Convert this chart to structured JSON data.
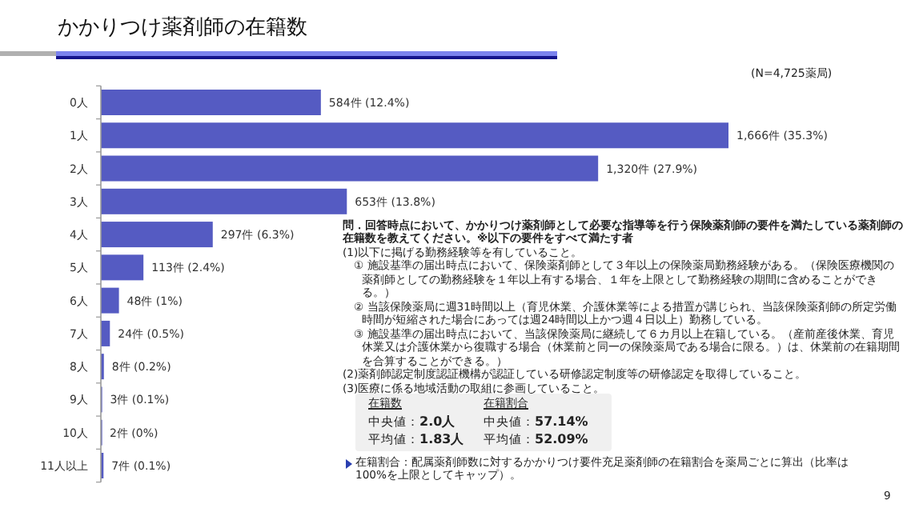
{
  "chart_data": {
    "type": "bar",
    "orientation": "horizontal",
    "title": "かかりつけ薬剤師の在籍数",
    "subtitle": "(N=4,725薬局)",
    "categories": [
      "0人",
      "1人",
      "2人",
      "3人",
      "4人",
      "5人",
      "6人",
      "7人",
      "8人",
      "9人",
      "10人",
      "11人以上"
    ],
    "values": [
      584,
      1666,
      1320,
      653,
      297,
      113,
      48,
      24,
      8,
      3,
      2,
      7
    ],
    "value_labels": [
      "584件 (12.4%)",
      "1,666件 (35.3%)",
      "1,320件 (27.9%)",
      "653件 (13.8%)",
      "297件 (6.3%)",
      "113件 (2.4%)",
      "48件 (1%)",
      "24件 (0.5%)",
      "8件 (0.2%)",
      "3件 (0.1%)",
      "2件 (0%)",
      "7件 (0.1%)"
    ],
    "color": "#555bc2",
    "annotations": [
      "問．回答時点において、かかりつけ薬剤師として必要な指導等を行う保険薬剤師の要件を満たしている薬剤師の在籍数を教えてください。※以下の要件をすべて満たす者",
      "(1)以下に掲げる勤務経験等を有していること。",
      "① 施設基準の届出時点において、保険薬剤師として３年以上の保険薬局勤務経験がある。（保険医療機関の薬剤師としての勤務経験を１年以上有する場合、１年を上限として勤務経験の期間に含めることができる。）",
      "② 当該保険薬局に週31時間以上（育児休業、介護休業等による措置が講じられ、当該保険薬剤師の所定労働時間が短縮された場合にあっては週24時間以上かつ週４日以上）勤務している。",
      "③ 施設基準の届出時点において、当該保険薬局に継続して６カ月以上在籍している。（産前産後休業、育児休業又は介護休業から復職する場合（休業前と同一の保険薬局である場合に限る。）は、休業前の在籍期間を合算することができる。）",
      "(2)薬剤師認定制度認証機構が認証している研修認定制度等の研修認定を取得していること。",
      "(3)医療に係る地域活動の取組に参画していること。",
      "在籍数",
      "中央値：2.0人",
      "平均値：1.83人",
      "在籍割合",
      "中央値：57.14%",
      "平均値：52.09%",
      "在籍割合：配属薬剤師数に対するかかりつけ要件充足薬剤師の在籍割合を薬局ごとに算出（比率は100%を上限としてキャップ）。",
      "9"
    ]
  }
}
